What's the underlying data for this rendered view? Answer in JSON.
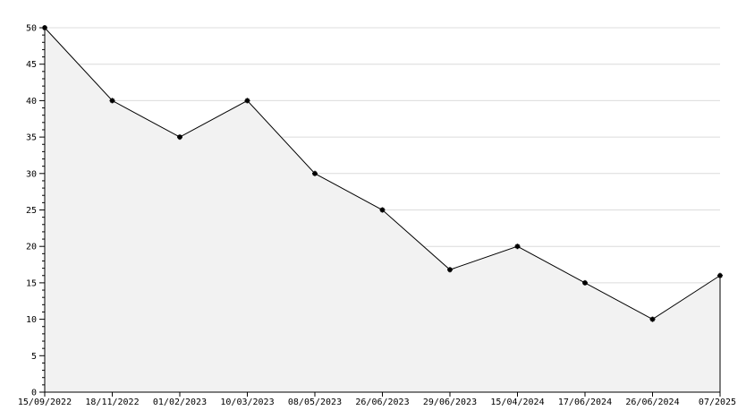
{
  "chart_data": {
    "type": "area",
    "categories": [
      "15/09/2022",
      "18/11/2022",
      "01/02/2023",
      "10/03/2023",
      "08/05/2023",
      "26/06/2023",
      "29/06/2023",
      "15/04/2024",
      "17/06/2024",
      "26/06/2024",
      "07/2025"
    ],
    "values": [
      50,
      40,
      35,
      40,
      30,
      25,
      16.8,
      20,
      15,
      10,
      16
    ],
    "color": "#000000",
    "fill": "#f2f2f2",
    "ylim": [
      0,
      50
    ],
    "yticks": [
      0,
      5,
      10,
      15,
      20,
      25,
      30,
      35,
      40,
      45,
      50
    ],
    "grid": true
  }
}
